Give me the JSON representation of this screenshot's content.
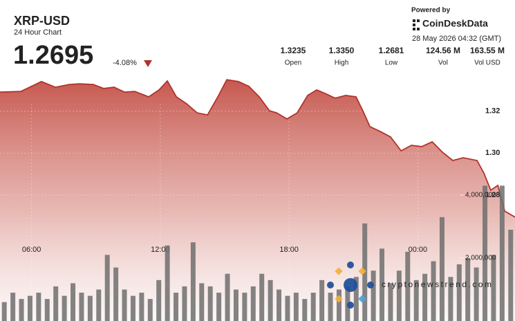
{
  "header": {
    "title": "XRP-USD",
    "subtitle": "24 Hour Chart",
    "price": "1.2695",
    "change": "-4.08%",
    "stats": [
      {
        "value": "1.3235",
        "label": "Open"
      },
      {
        "value": "1.3350",
        "label": "High"
      },
      {
        "value": "1.2681",
        "label": "Low"
      },
      {
        "value": "124.56 M",
        "label": "Vol"
      },
      {
        "value": "163.55 M",
        "label": "Vol USD"
      }
    ],
    "powered_by": "Powered by",
    "brand": "CoinDeskData",
    "timestamp": "28 May 2026 04:32 (GMT)"
  },
  "watermark": "cryptonewstrend.com",
  "chart_data": [
    {
      "type": "area",
      "name": "Price",
      "color": "#b0332c",
      "x": [
        4.53,
        5.5,
        6.46,
        7.11,
        7.75,
        8.23,
        8.88,
        9.36,
        9.85,
        10.33,
        10.81,
        11.46,
        11.94,
        12.33,
        12.75,
        13.23,
        13.71,
        14.2,
        14.68,
        15.1,
        15.64,
        16.13,
        16.61,
        17.09,
        17.42,
        17.9,
        18.38,
        18.87,
        19.29,
        19.67,
        20.15,
        20.64,
        21.12,
        21.44,
        21.77,
        22.25,
        22.73,
        23.22,
        23.7,
        24.18,
        24.67,
        25.15,
        25.63,
        26.12,
        26.76,
        27.08,
        27.4,
        27.73,
        28.05,
        28.53
      ],
      "values": [
        1.3291,
        1.3294,
        1.3341,
        1.3314,
        1.3327,
        1.333,
        1.3327,
        1.3308,
        1.3314,
        1.3291,
        1.3294,
        1.3268,
        1.3301,
        1.3344,
        1.3268,
        1.3235,
        1.3192,
        1.3182,
        1.3268,
        1.335,
        1.3341,
        1.3318,
        1.3268,
        1.3202,
        1.3192,
        1.3163,
        1.3192,
        1.3275,
        1.3301,
        1.3285,
        1.3262,
        1.3275,
        1.3268,
        1.3202,
        1.3126,
        1.3103,
        1.3077,
        1.3011,
        1.3037,
        1.3031,
        1.3054,
        1.3004,
        1.2965,
        1.2978,
        1.2965,
        1.2905,
        1.2823,
        1.2846,
        1.2724,
        1.2695
      ],
      "xlim": [
        4.53,
        28.53
      ],
      "xticks": [
        {
          "value": 6,
          "label": "06:00"
        },
        {
          "value": 12,
          "label": "12:00"
        },
        {
          "value": 18,
          "label": "18:00"
        },
        {
          "value": 24,
          "label": "00:00"
        }
      ],
      "ylim": [
        1.22,
        1.34
      ],
      "yticks": [
        {
          "value": 1.28,
          "label": "1.28"
        },
        {
          "value": 1.3,
          "label": "1.30"
        },
        1.32
      ],
      "grid": true
    },
    {
      "type": "bar",
      "name": "Volume",
      "color": "#6f6f6f",
      "x": [
        4.73,
        5.13,
        5.53,
        5.93,
        6.33,
        6.73,
        7.13,
        7.53,
        7.93,
        8.33,
        8.73,
        9.13,
        9.53,
        9.93,
        10.33,
        10.73,
        11.13,
        11.53,
        11.93,
        12.33,
        12.73,
        13.13,
        13.53,
        13.93,
        14.33,
        14.73,
        15.13,
        15.53,
        15.93,
        16.33,
        16.73,
        17.13,
        17.53,
        17.93,
        18.33,
        18.73,
        19.13,
        19.53,
        19.93,
        20.33,
        20.73,
        21.13,
        21.53,
        21.93,
        22.33,
        22.73,
        23.13,
        23.53,
        23.93,
        24.33,
        24.73,
        25.13,
        25.53,
        25.93,
        26.33,
        26.73,
        27.13,
        27.53,
        27.93,
        28.33
      ],
      "values": [
        600000,
        900000,
        700000,
        800000,
        900000,
        700000,
        1100000,
        800000,
        1200000,
        900000,
        800000,
        1000000,
        2100000,
        1700000,
        1000000,
        800000,
        900000,
        700000,
        1300000,
        2400000,
        900000,
        1100000,
        2500000,
        1200000,
        1100000,
        900000,
        1500000,
        1000000,
        900000,
        1100000,
        1500000,
        1300000,
        1000000,
        800000,
        900000,
        700000,
        900000,
        1300000,
        900000,
        1000000,
        1100000,
        1400000,
        3100000,
        1600000,
        2300000,
        1200000,
        1600000,
        2200000,
        1300000,
        1500000,
        1900000,
        3300000,
        1400000,
        1800000,
        2000000,
        1700000,
        4300000,
        2100000,
        4300000,
        2900000
      ],
      "xlim": [
        4.53,
        28.53
      ],
      "y2lim": [
        0,
        8000000
      ],
      "y2ticks": [
        {
          "value": 2000000,
          "label": "2,000,000"
        },
        {
          "value": 4000000,
          "label": "4,000,000"
        }
      ]
    }
  ]
}
